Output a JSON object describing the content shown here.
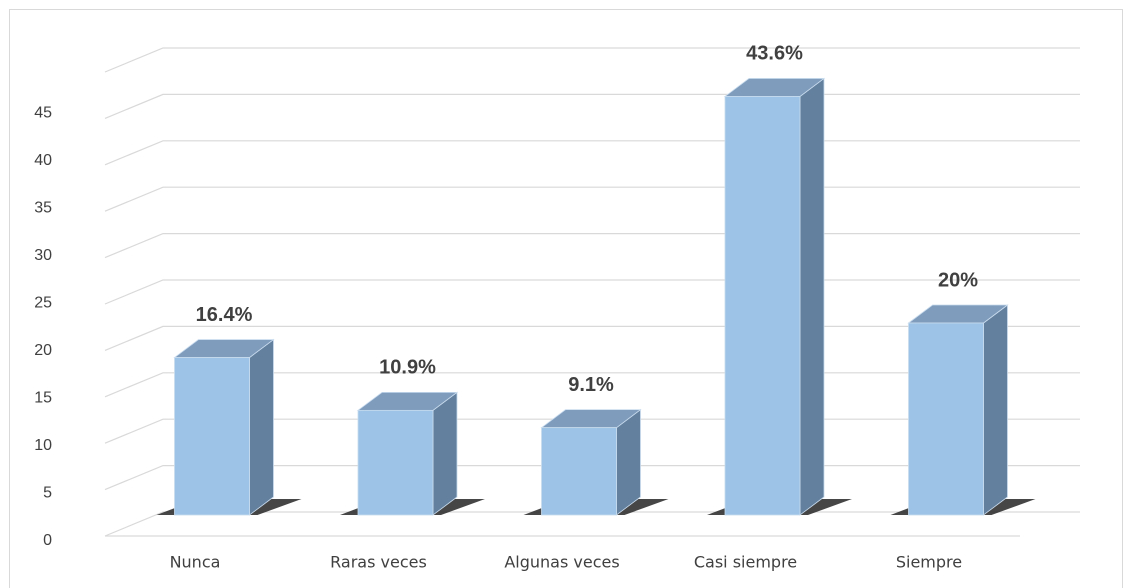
{
  "chart_data": {
    "type": "bar3d",
    "categories": [
      "Nunca",
      "Raras veces",
      "Algunas veces",
      "Casi siempre",
      "Siempre"
    ],
    "values": [
      16.4,
      10.9,
      9.1,
      43.6,
      20
    ],
    "value_labels": [
      "16.4%",
      "10.9%",
      "9.1%",
      "43.6%",
      "20%"
    ],
    "color": "#9dc3e6",
    "ylim": [
      0,
      50
    ],
    "yticks": [
      0,
      5,
      10,
      15,
      20,
      25,
      30,
      35,
      40,
      45
    ],
    "grid": true
  }
}
